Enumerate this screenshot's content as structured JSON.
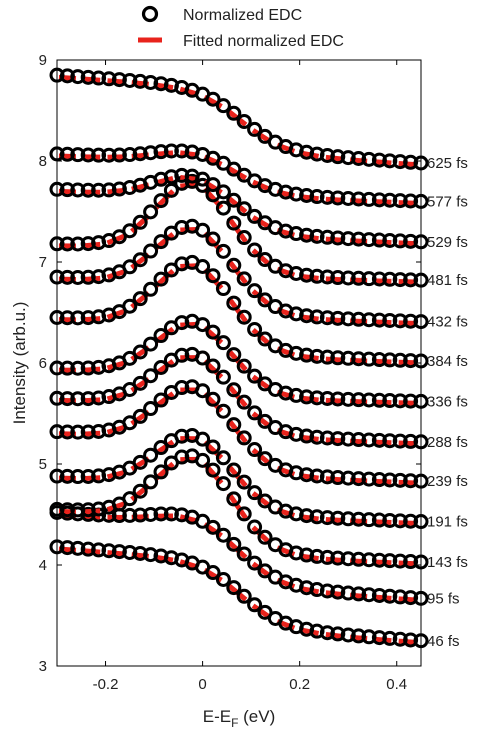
{
  "chart_data": {
    "type": "scatter",
    "xlabel": "E-E",
    "xlabel_sub": "F",
    "xlabel_unit": " (eV)",
    "ylabel": "Intensity (arb.u.)",
    "xlim": [
      -0.3,
      0.45
    ],
    "ylim": [
      3,
      9
    ],
    "xticks": [
      -0.2,
      0,
      0.2,
      0.4
    ],
    "xtick_labels": [
      "-0.2",
      "0",
      "0.2",
      "0.4"
    ],
    "yticks": [
      3,
      4,
      5,
      6,
      7,
      8,
      9
    ],
    "ytick_labels": [
      "3",
      "4",
      "5",
      "6",
      "7",
      "8",
      "9"
    ],
    "grid": false,
    "legend_position": "top",
    "legend": [
      {
        "label": "Normalized EDC",
        "marker": "circle",
        "color": "#000000"
      },
      {
        "label": "Fitted normalized EDC",
        "marker": "dash",
        "color": "#e8231c"
      }
    ],
    "colors": {
      "data": "#000000",
      "fit": "#e8231c"
    },
    "series": [
      {
        "name": "46 fs",
        "y_start": 4.18,
        "y_end": 3.25,
        "peak": 0.0
      },
      {
        "name": "95 fs",
        "y_start": 4.52,
        "y_end": 3.67,
        "peak": 0.1
      },
      {
        "name": "143 fs",
        "y_start": 4.55,
        "y_end": 4.03,
        "peak": 0.62
      },
      {
        "name": "191 fs",
        "y_start": 4.88,
        "y_end": 4.43,
        "peak": 0.48
      },
      {
        "name": "239 fs",
        "y_start": 5.32,
        "y_end": 4.83,
        "peak": 0.53
      },
      {
        "name": "288 fs",
        "y_start": 5.65,
        "y_end": 5.22,
        "peak": 0.51
      },
      {
        "name": "336 fs",
        "y_start": 5.95,
        "y_end": 5.62,
        "peak": 0.52
      },
      {
        "name": "384 fs",
        "y_start": 6.45,
        "y_end": 6.02,
        "peak": 0.62
      },
      {
        "name": "432 fs",
        "y_start": 6.85,
        "y_end": 6.41,
        "peak": 0.58
      },
      {
        "name": "481 fs",
        "y_start": 7.18,
        "y_end": 6.82,
        "peak": 0.68
      },
      {
        "name": "529 fs",
        "y_start": 7.72,
        "y_end": 7.2,
        "peak": 0.22
      },
      {
        "name": "577 fs",
        "y_start": 8.07,
        "y_end": 7.6,
        "peak": 0.1
      },
      {
        "name": "625 fs",
        "y_start": 8.85,
        "y_end": 7.98,
        "peak": 0.0
      }
    ]
  }
}
